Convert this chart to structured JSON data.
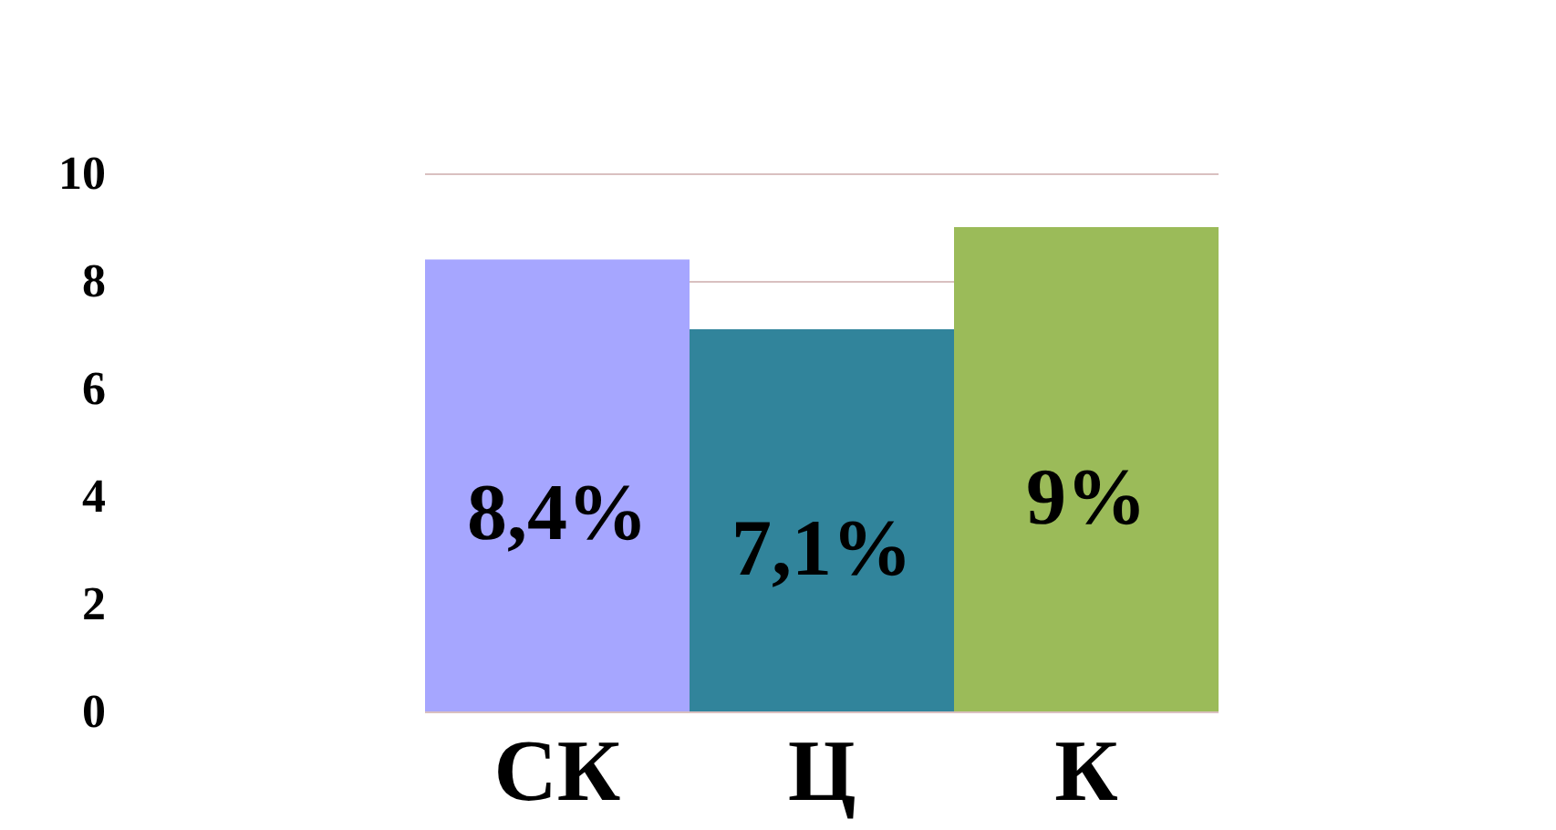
{
  "chart_data": {
    "type": "bar",
    "categories": [
      "СК",
      "Ц",
      "К"
    ],
    "values": [
      8.4,
      7.1,
      9
    ],
    "colors": [
      "#a6a6ff",
      "#31849b",
      "#9bbb59"
    ],
    "value_labels": [
      "8,4%",
      "7,1%",
      "9%"
    ],
    "ylim": [
      0,
      10
    ],
    "yticks": [
      0,
      2,
      4,
      6,
      8,
      10
    ],
    "grid": "y"
  }
}
